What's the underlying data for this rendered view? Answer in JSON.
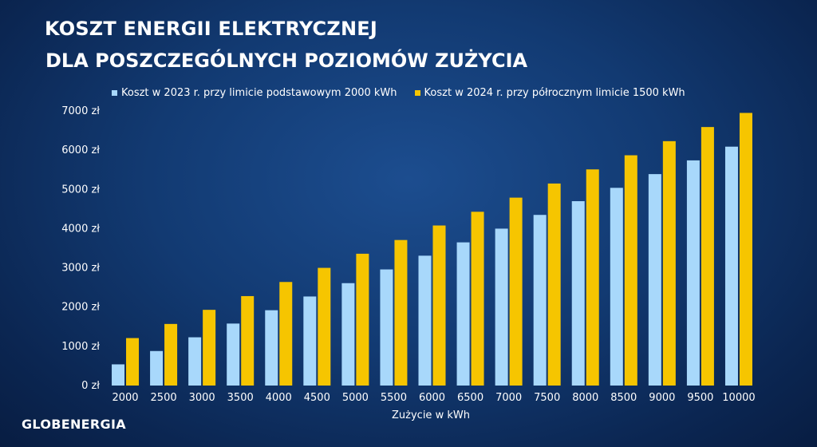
{
  "chart_data": {
    "type": "bar",
    "title": "KOSZT ENERGII ELEKTRYCZNEJ",
    "subtitle": "DLA POSZCZEGÓLNYCH POZIOMÓW ZUŻYCIA",
    "xlabel": "Zużycie w kWh",
    "ylabel": "",
    "ylim": [
      0,
      7000
    ],
    "yticks": [
      "0 zł",
      "1000 zł",
      "2000 zł",
      "3000 zł",
      "4000 zł",
      "5000 zł",
      "6000 zł",
      "7000 zł"
    ],
    "ytick_values": [
      0,
      1000,
      2000,
      3000,
      4000,
      5000,
      6000,
      7000
    ],
    "grid": false,
    "legend_position": "top",
    "categories": [
      "2000",
      "2500",
      "3000",
      "3500",
      "4000",
      "4500",
      "5000",
      "5500",
      "6000",
      "6500",
      "7000",
      "7500",
      "8000",
      "8500",
      "9000",
      "9500",
      "10000"
    ],
    "series": [
      {
        "name": "Koszt w 2023 r. przy limicie podstawowym 2000 kWh",
        "color": "#a8d8fb",
        "values": [
          540,
          880,
          1230,
          1580,
          1920,
          2270,
          2610,
          2960,
          3310,
          3650,
          4000,
          4350,
          4700,
          5040,
          5390,
          5740,
          6090
        ]
      },
      {
        "name": "Koszt w 2024 r. przy półrocznym limicie 1500 kWh",
        "color": "#f6c500",
        "values": [
          1210,
          1570,
          1930,
          2280,
          2640,
          3000,
          3360,
          3710,
          4080,
          4430,
          4790,
          5150,
          5510,
          5870,
          6230,
          6590,
          6950
        ]
      }
    ]
  },
  "branding": {
    "logo_text": "GLOBENERGIA"
  }
}
